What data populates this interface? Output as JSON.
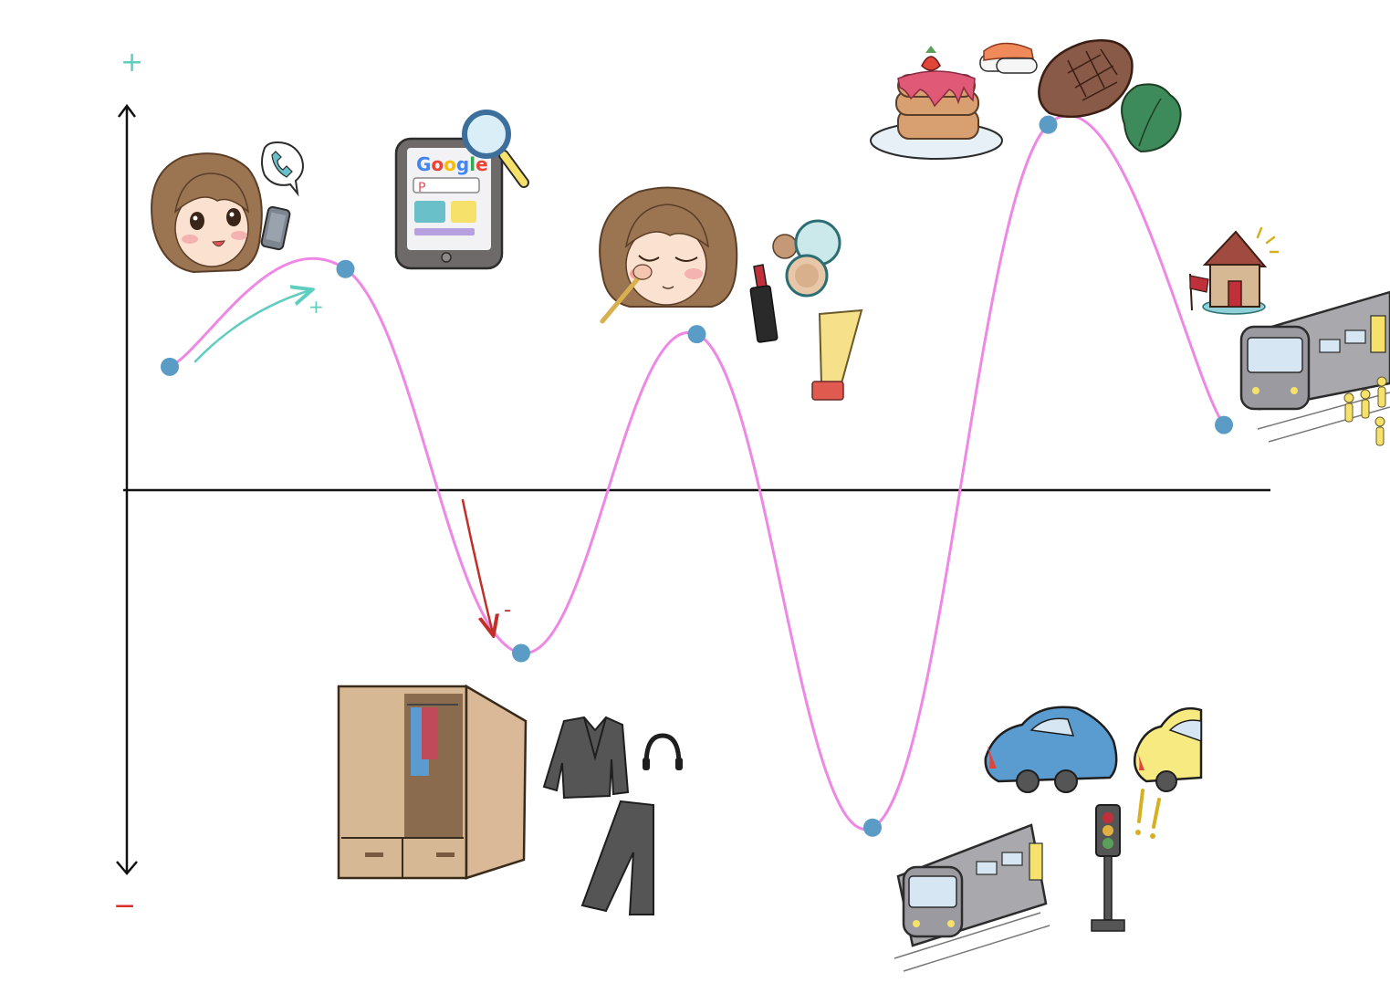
{
  "axis": {
    "plus_label": "+",
    "minus_label": "−"
  },
  "annotations": {
    "rise_label": "+",
    "fall_label": "-"
  },
  "tablet": {
    "search_brand": "Google",
    "search_box_text": "P"
  },
  "colors": {
    "curve": "#ee88e4",
    "point": "#5b9cc6",
    "plus": "#5fcdc0",
    "minus": "#d9302a",
    "axis": "#111111",
    "train": "#a9a9ad",
    "car_blue": "#5b9cd0",
    "car_yellow": "#f6ea80",
    "hair": "#9b7451",
    "wood": "#d7b894"
  },
  "stages": [
    {
      "name": "wake-up-phone",
      "level": 0.53,
      "icons": [
        "girl-with-phone-icon",
        "phone-call-bubble-icon"
      ]
    },
    {
      "name": "browse-online",
      "level": 0.95,
      "icons": [
        "tablet-search-icon",
        "magnifier-icon"
      ]
    },
    {
      "name": "choose-outfit",
      "level": -0.7,
      "icons": [
        "wardrobe-icon",
        "jacket-icon",
        "trousers-icon",
        "headphones-icon"
      ]
    },
    {
      "name": "makeup",
      "level": 0.67,
      "icons": [
        "girl-makeup-icon",
        "lipstick-icon",
        "compact-icon",
        "cream-tube-icon"
      ]
    },
    {
      "name": "commute-traffic",
      "level": -1.45,
      "icons": [
        "train-icon",
        "traffic-light-icon",
        "blue-car-icon",
        "yellow-car-icon"
      ]
    },
    {
      "name": "eat-out",
      "level": 1.57,
      "icons": [
        "pancake-icon",
        "sushi-icon",
        "steak-icon",
        "lettuce-icon"
      ]
    },
    {
      "name": "go-home",
      "level": 0.28,
      "icons": [
        "house-icon",
        "train-icon",
        "crowd-icon"
      ]
    }
  ]
}
